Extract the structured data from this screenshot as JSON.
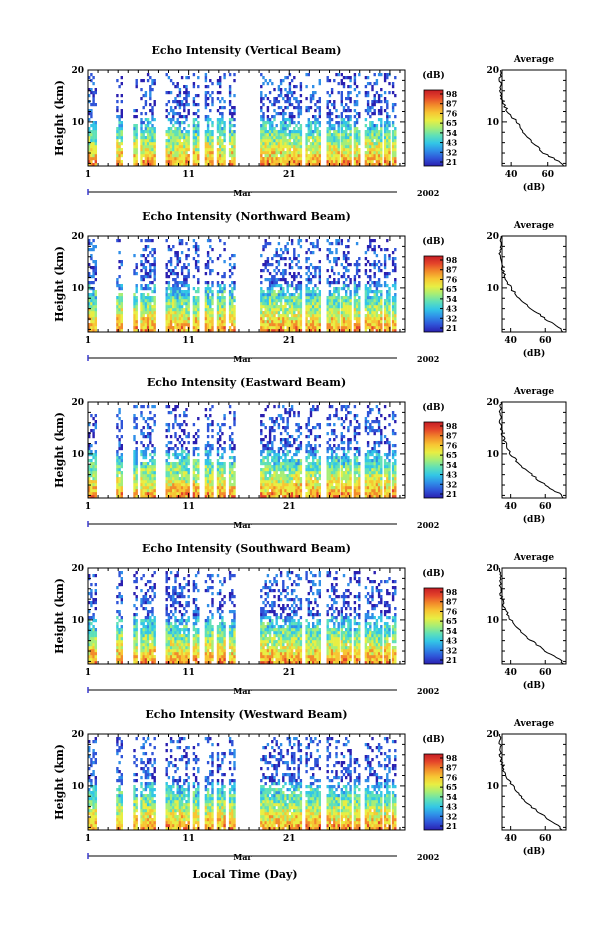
{
  "figure": {
    "x_axis_title": "Local Time (Day)",
    "colorbar_unit": "(dB)",
    "colorbar_ticks": [
      "21",
      "32",
      "43",
      "54",
      "65",
      "76",
      "87",
      "98"
    ],
    "colormap": [
      "#2a1fb0",
      "#2f54d8",
      "#2f8ee8",
      "#33c6e6",
      "#5fe0b8",
      "#a6ee76",
      "#e8ee43",
      "#f7c633",
      "#f28a2a",
      "#e5452a",
      "#c61c24"
    ],
    "avg_title": "Average",
    "avg_x_label": "(dB)",
    "avg_x_ticks": [
      "40",
      "60"
    ],
    "height_label": "Height (km)",
    "height_ticks": [
      "20",
      "10"
    ],
    "time_ticks": [
      "1",
      "11",
      "21"
    ],
    "month_label": "Mar",
    "year_label": "2002"
  },
  "chart_data": [
    {
      "type": "heatmap",
      "title": "Echo Intensity (Vertical Beam)",
      "xlabel": "Local Time (Day)",
      "ylabel": "Height (km)",
      "xlim": [
        1,
        32
      ],
      "ylim": [
        1.5,
        20
      ],
      "color_range_db": [
        21,
        98
      ],
      "height_profile": {
        "height_km": [
          2,
          4,
          6,
          8,
          10,
          12,
          14,
          16,
          18,
          20
        ],
        "avg_db": [
          68,
          58,
          52,
          47,
          43,
          38,
          35,
          34,
          34,
          35
        ]
      },
      "avg_xlim": [
        35,
        70
      ]
    },
    {
      "type": "heatmap",
      "title": "Echo Intensity (Northward Beam)",
      "xlabel": "Local Time (Day)",
      "ylabel": "Height (km)",
      "xlim": [
        1,
        32
      ],
      "ylim": [
        1.5,
        20
      ],
      "color_range_db": [
        21,
        98
      ],
      "height_profile": {
        "height_km": [
          2,
          4,
          6,
          8,
          10,
          12,
          14,
          16,
          18,
          20
        ],
        "avg_db": [
          70,
          60,
          52,
          45,
          40,
          37,
          35,
          34,
          34,
          34
        ]
      },
      "avg_xlim": [
        35,
        72
      ]
    },
    {
      "type": "heatmap",
      "title": "Echo Intensity (Eastward Beam)",
      "xlabel": "Local Time (Day)",
      "ylabel": "Height (km)",
      "xlim": [
        1,
        32
      ],
      "ylim": [
        1.5,
        20
      ],
      "color_range_db": [
        21,
        98
      ],
      "height_profile": {
        "height_km": [
          2,
          4,
          6,
          8,
          10,
          12,
          14,
          16,
          18,
          20
        ],
        "avg_db": [
          70,
          60,
          52,
          45,
          40,
          37,
          35,
          34,
          34,
          34
        ]
      },
      "avg_xlim": [
        35,
        72
      ]
    },
    {
      "type": "heatmap",
      "title": "Echo Intensity (Southward Beam)",
      "xlabel": "Local Time (Day)",
      "ylabel": "Height (km)",
      "xlim": [
        1,
        32
      ],
      "ylim": [
        1.5,
        20
      ],
      "color_range_db": [
        21,
        98
      ],
      "height_profile": {
        "height_km": [
          2,
          4,
          6,
          8,
          10,
          12,
          14,
          16,
          18,
          20
        ],
        "avg_db": [
          70,
          60,
          52,
          45,
          40,
          37,
          35,
          34,
          34,
          34
        ]
      },
      "avg_xlim": [
        35,
        72
      ]
    },
    {
      "type": "heatmap",
      "title": "Echo Intensity (Westward Beam)",
      "xlabel": "Local Time (Day)",
      "ylabel": "Height (km)",
      "xlim": [
        1,
        32
      ],
      "ylim": [
        1.5,
        20
      ],
      "color_range_db": [
        21,
        98
      ],
      "height_profile": {
        "height_km": [
          2,
          4,
          6,
          8,
          10,
          12,
          14,
          16,
          18,
          20
        ],
        "avg_db": [
          69,
          60,
          52,
          46,
          41,
          37,
          35,
          34,
          34,
          34
        ]
      },
      "avg_xlim": [
        35,
        72
      ]
    }
  ]
}
